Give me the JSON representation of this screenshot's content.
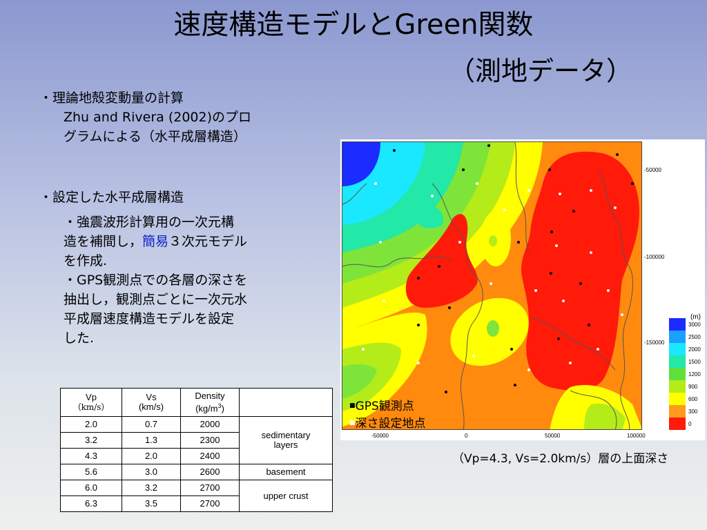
{
  "title": "速度構造モデルとGreen関数",
  "subtitle": "（測地データ）",
  "bullets": {
    "b1": "・理論地殻変動量の計算",
    "b1_sub1": "Zhu and Rivera (2002)のプロ",
    "b1_sub2": "グラムによる（水平成層構造）",
    "b2": "・設定した水平成層構造",
    "b3_line1": "・強震波形計算用の一次元構",
    "b3_line2a": "造を補間し，",
    "b3_highlight": "簡易",
    "b3_line2b": "３次元モデル",
    "b3_line3": "を作成.",
    "b4_line1": "・GPS観測点での各層の深さを",
    "b4_line2": "抽出し，観測点ごとに一次元水",
    "b4_line3": "平成層速度構造モデルを設定",
    "b4_line4": "した."
  },
  "table": {
    "headers": {
      "vp": "Vp",
      "vp_unit": "（km/s）",
      "vs": "Vs",
      "vs_unit": "(km/s)",
      "density": "Density",
      "density_unit": "(kg/m",
      "density_sup": "3",
      "density_close": ")"
    },
    "rows": [
      {
        "vp": "2.0",
        "vs": "0.7",
        "density": "2000"
      },
      {
        "vp": "3.2",
        "vs": "1.3",
        "density": "2300"
      },
      {
        "vp": "4.3",
        "vs": "2.0",
        "density": "2400"
      },
      {
        "vp": "5.6",
        "vs": "3.0",
        "density": "2600"
      },
      {
        "vp": "6.0",
        "vs": "3.2",
        "density": "2700"
      },
      {
        "vp": "6.3",
        "vs": "3.5",
        "density": "2700"
      }
    ],
    "groups": {
      "sedimentary_1": "sedimentary",
      "sedimentary_2": "layers",
      "basement": "basement",
      "upper_crust": "upper crust"
    }
  },
  "map": {
    "y_ticks": [
      "-50000",
      "-100000",
      "-150000"
    ],
    "x_ticks": [
      "-50000",
      "0",
      "50000",
      "100000"
    ],
    "legend_unit": "(m)",
    "legend": [
      {
        "label": "3000",
        "color": "#1a2cff"
      },
      {
        "label": "2500",
        "color": "#1aa0ff"
      },
      {
        "label": "2000",
        "color": "#19e8ff"
      },
      {
        "label": "1500",
        "color": "#22e8a8"
      },
      {
        "label": "1200",
        "color": "#5fe03a"
      },
      {
        "label": "900",
        "color": "#b4ec1a"
      },
      {
        "label": "600",
        "color": "#ffff00"
      },
      {
        "label": "300",
        "color": "#ff9a1f"
      },
      {
        "label": "0",
        "color": "#ff1a0a"
      }
    ],
    "gps_legend_1": "GPS観測点",
    "gps_legend_2": "深さ設定地点",
    "caption": "（Vp=4.3, Vs=2.0km/s）層の上面深さ"
  }
}
